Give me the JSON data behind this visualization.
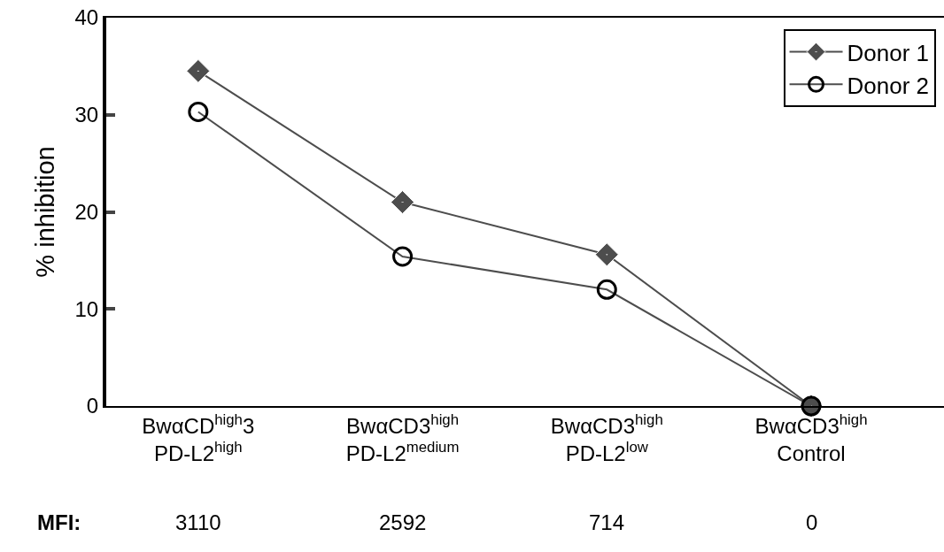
{
  "chart_data": {
    "type": "line",
    "ylabel": "% inhibition",
    "categories": [
      "BwαCD$^{high}$3\nPD-L2$^{high}$",
      "BwαCD3$^{high}$\nPD-L2$^{medium}$",
      "BwαCD3$^{high}$\nPD-L2$^{low}$",
      "BwαCD3$^{high}$\nControl"
    ],
    "series": [
      {
        "name": "Donor 1",
        "color": "#4d4d4d",
        "marker": "diamond",
        "values": [
          34.5,
          21.0,
          15.6,
          0
        ]
      },
      {
        "name": "Donor 2",
        "color": "#000000",
        "marker": "circle",
        "values": [
          30.3,
          15.4,
          12.0,
          0
        ]
      }
    ],
    "ylim": [
      0,
      40
    ],
    "yticks": [
      0,
      10,
      20,
      30,
      40
    ],
    "legend": "top right",
    "annotations": [
      "MFI:",
      "3110",
      "2592",
      "714",
      "0"
    ]
  }
}
